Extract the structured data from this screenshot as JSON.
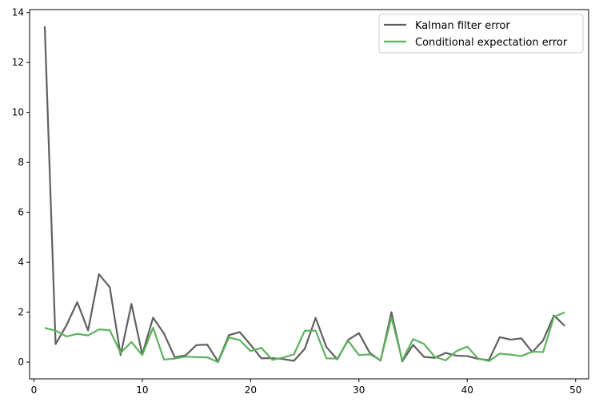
{
  "chart_data": {
    "type": "line",
    "x": [
      1,
      2,
      3,
      4,
      5,
      6,
      7,
      8,
      9,
      10,
      11,
      12,
      13,
      14,
      15,
      16,
      17,
      18,
      19,
      20,
      21,
      22,
      23,
      24,
      25,
      26,
      27,
      28,
      29,
      30,
      31,
      32,
      33,
      34,
      35,
      36,
      37,
      38,
      39,
      40,
      41,
      42,
      43,
      44,
      45,
      46,
      47,
      48,
      49
    ],
    "series": [
      {
        "name": "Kalman filter error",
        "color": "#606060",
        "values": [
          13.45,
          0.72,
          1.47,
          2.4,
          1.27,
          3.52,
          3.0,
          0.28,
          2.33,
          0.31,
          1.78,
          1.15,
          0.19,
          0.27,
          0.68,
          0.7,
          0.02,
          1.08,
          1.2,
          0.69,
          0.15,
          0.16,
          0.12,
          0.05,
          0.53,
          1.77,
          0.6,
          0.11,
          0.89,
          1.16,
          0.37,
          0.06,
          2.0,
          0.03,
          0.69,
          0.21,
          0.17,
          0.37,
          0.26,
          0.24,
          0.13,
          0.08,
          1.0,
          0.9,
          0.95,
          0.4,
          0.87,
          1.87,
          1.45
        ]
      },
      {
        "name": "Conditional expectation error",
        "color": "#5cb35c",
        "values": [
          1.37,
          1.26,
          1.03,
          1.13,
          1.07,
          1.31,
          1.28,
          0.37,
          0.8,
          0.28,
          1.38,
          0.1,
          0.14,
          0.22,
          0.2,
          0.19,
          0.0,
          0.99,
          0.88,
          0.44,
          0.57,
          0.09,
          0.18,
          0.31,
          1.26,
          1.26,
          0.15,
          0.14,
          0.86,
          0.28,
          0.31,
          0.08,
          1.79,
          0.07,
          0.92,
          0.73,
          0.21,
          0.07,
          0.44,
          0.62,
          0.14,
          0.04,
          0.34,
          0.3,
          0.24,
          0.42,
          0.4,
          1.81,
          1.99
        ]
      }
    ],
    "xlim": [
      -0.4,
      51.2
    ],
    "ylim": [
      -0.67,
      14.12
    ],
    "xticks": [
      0,
      10,
      20,
      30,
      40,
      50
    ],
    "yticks": [
      0,
      2,
      4,
      6,
      8,
      10,
      12,
      14
    ],
    "xticklabels": [
      "0",
      "10",
      "20",
      "30",
      "40",
      "50"
    ],
    "yticklabels": [
      "0",
      "2",
      "4",
      "6",
      "8",
      "10",
      "12",
      "14"
    ],
    "legend_position": "top-right",
    "grid": false
  }
}
